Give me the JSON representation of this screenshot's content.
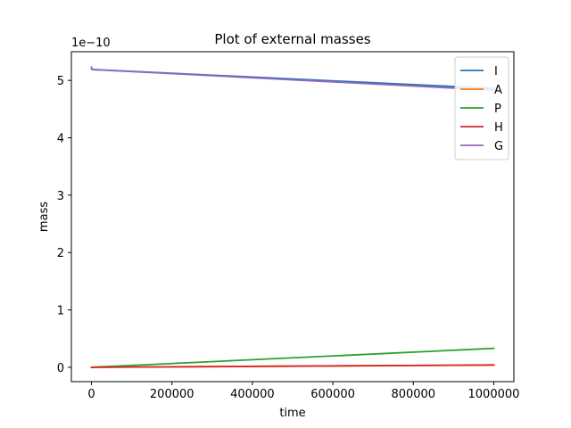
{
  "chart_data": {
    "type": "line",
    "title": "Plot of external masses",
    "xlabel": "time",
    "ylabel": "mass",
    "y_offset_label": "1e−10",
    "xlim": [
      -50000,
      1050000
    ],
    "ylim": [
      -0.25,
      5.5
    ],
    "x_ticks": [
      0,
      200000,
      400000,
      600000,
      800000,
      1000000
    ],
    "x_tick_labels": [
      "0",
      "200000",
      "400000",
      "600000",
      "800000",
      "1000000"
    ],
    "y_ticks": [
      0,
      1,
      2,
      3,
      4,
      5
    ],
    "y_tick_labels": [
      "0",
      "1",
      "2",
      "3",
      "4",
      "5"
    ],
    "y_scale_note": "y values in units of 1e-10",
    "grid": false,
    "legend_position": "top-right",
    "series": [
      {
        "name": "I",
        "color": "#1f77b4",
        "x": [
          0,
          1000,
          1000000
        ],
        "y": [
          5.23,
          5.19,
          4.86
        ]
      },
      {
        "name": "A",
        "color": "#ff7f0e",
        "x": [
          0,
          1000000
        ],
        "y": [
          0.0,
          0.04
        ]
      },
      {
        "name": "P",
        "color": "#2ca02c",
        "x": [
          0,
          1000000
        ],
        "y": [
          0.0,
          0.33
        ]
      },
      {
        "name": "H",
        "color": "#d62728",
        "x": [
          0,
          1000000
        ],
        "y": [
          0.0,
          0.04
        ]
      },
      {
        "name": "G",
        "color": "#9467bd",
        "x": [
          0,
          1000,
          1000000
        ],
        "y": [
          5.23,
          5.19,
          4.83
        ]
      }
    ]
  }
}
